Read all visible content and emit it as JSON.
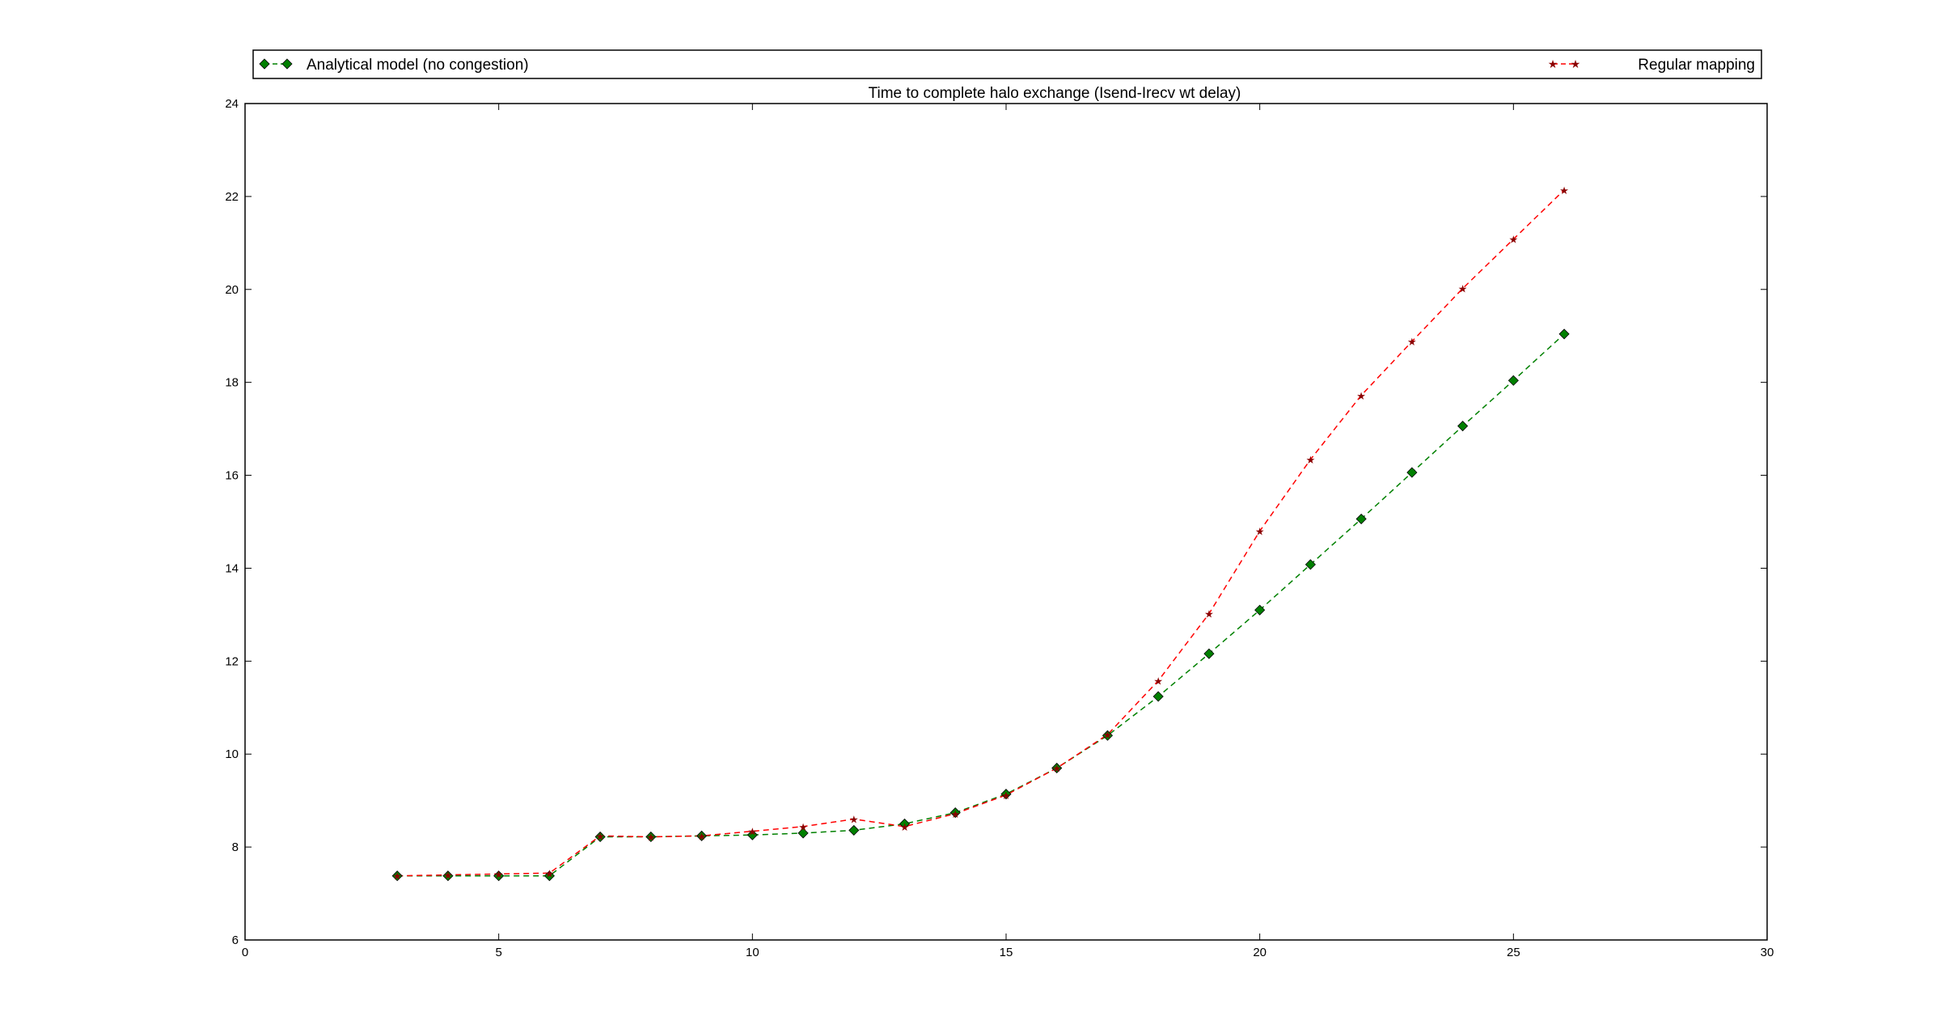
{
  "chart_data": {
    "type": "line",
    "title": "Time to complete halo exchange (Isend-Irecv wt delay)",
    "xlabel": "",
    "ylabel": "",
    "xlim": [
      0,
      30
    ],
    "ylim": [
      6,
      24
    ],
    "xticks": [
      0,
      5,
      10,
      15,
      20,
      25,
      30
    ],
    "yticks": [
      6,
      8,
      10,
      12,
      14,
      16,
      18,
      20,
      22,
      24
    ],
    "grid": false,
    "legend_position": "top, above plot (expanded)",
    "series": [
      {
        "name": "Analytical model (no congestion)",
        "color": "#008000",
        "line_style": "dashed",
        "marker": "diamond",
        "x": [
          3,
          4,
          5,
          6,
          7,
          8,
          9,
          10,
          11,
          12,
          13,
          14,
          15,
          16,
          17,
          18,
          19,
          20,
          21,
          22,
          23,
          24,
          25,
          26
        ],
        "y": [
          7.38,
          7.38,
          7.38,
          7.38,
          8.22,
          8.22,
          8.24,
          8.26,
          8.3,
          8.36,
          8.5,
          8.74,
          9.14,
          9.7,
          10.4,
          11.24,
          12.16,
          13.1,
          14.08,
          15.06,
          16.06,
          17.06,
          18.04,
          19.04
        ]
      },
      {
        "name": "Regular mapping",
        "color": "#ff0000",
        "line_style": "dashed",
        "marker": "star",
        "x": [
          3,
          4,
          5,
          6,
          7,
          8,
          9,
          10,
          11,
          12,
          13,
          14,
          15,
          16,
          17,
          18,
          19,
          20,
          21,
          22,
          23,
          24,
          25,
          26
        ],
        "y": [
          7.38,
          7.4,
          7.42,
          7.44,
          8.24,
          8.22,
          8.24,
          8.34,
          8.44,
          8.6,
          8.44,
          8.72,
          9.12,
          9.7,
          10.42,
          11.58,
          13.02,
          14.8,
          16.34,
          17.72,
          18.88,
          20.02,
          21.08,
          22.14
        ]
      }
    ]
  }
}
